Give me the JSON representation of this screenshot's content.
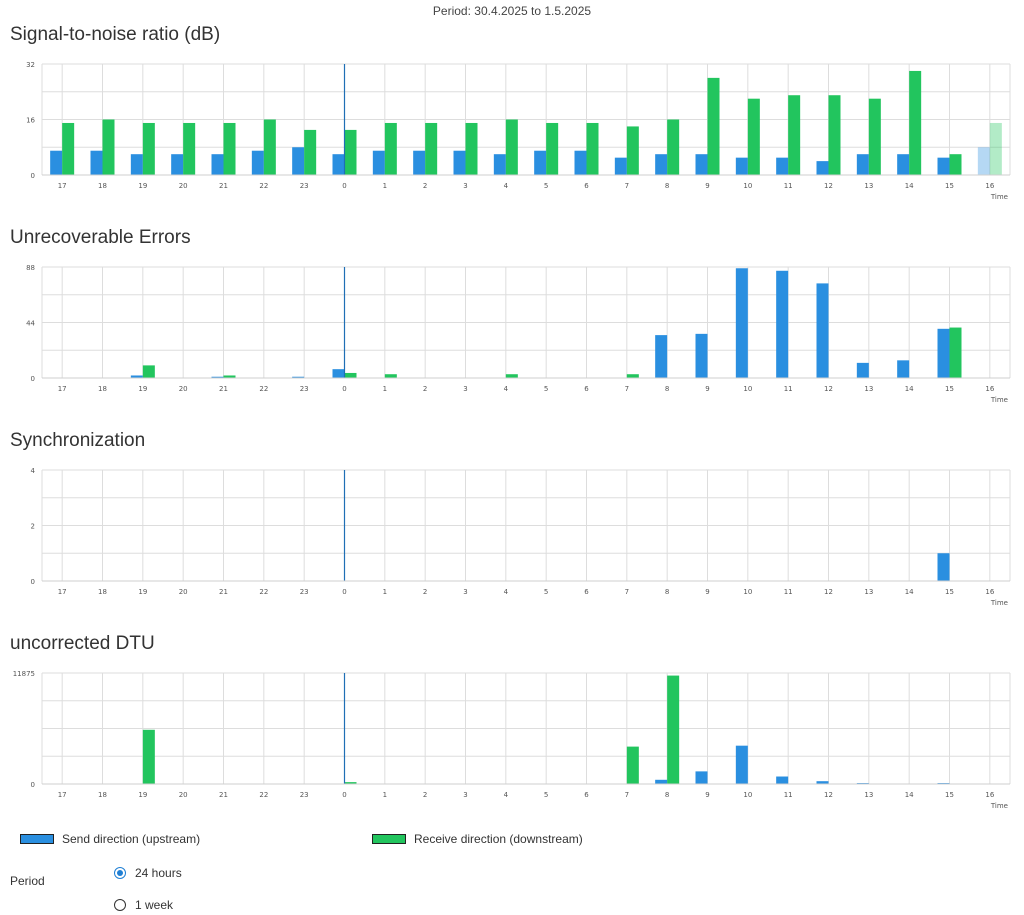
{
  "header": {
    "period_text": "Period: 30.4.2025 to 1.5.2025"
  },
  "colors": {
    "upstream": "#2a8fe0",
    "downstream": "#22c55e",
    "grid": "#dddddd",
    "marker": "#1f6fb5"
  },
  "legend": {
    "upstream": "Send direction (upstream)",
    "downstream": "Receive direction (downstream)"
  },
  "period_selector": {
    "label": "Period",
    "options": [
      {
        "label": "24 hours",
        "selected": true
      },
      {
        "label": "1 week",
        "selected": false
      }
    ]
  },
  "chart_data": [
    {
      "type": "bar",
      "title": "Signal-to-noise ratio (dB)",
      "xlabel": "Time",
      "categories": [
        "17",
        "18",
        "19",
        "20",
        "21",
        "22",
        "23",
        "0",
        "1",
        "2",
        "3",
        "4",
        "5",
        "6",
        "7",
        "8",
        "9",
        "10",
        "11",
        "12",
        "13",
        "14",
        "15",
        "16"
      ],
      "ylim": [
        0,
        32
      ],
      "yticks": [
        0,
        16,
        32
      ],
      "current_hour_marker": "0",
      "partial_last": true,
      "series": [
        {
          "key": "upstream",
          "values": [
            7,
            7,
            6,
            6,
            6,
            7,
            8,
            6,
            7,
            7,
            7,
            6,
            7,
            7,
            5,
            6,
            6,
            5,
            5,
            4,
            6,
            6,
            5,
            8
          ]
        },
        {
          "key": "downstream",
          "values": [
            15,
            16,
            15,
            15,
            15,
            16,
            13,
            13,
            15,
            15,
            15,
            16,
            15,
            15,
            14,
            16,
            28,
            22,
            23,
            23,
            22,
            30,
            6,
            15
          ]
        }
      ]
    },
    {
      "type": "bar",
      "title": "Unrecoverable Errors",
      "xlabel": "Time",
      "categories": [
        "17",
        "18",
        "19",
        "20",
        "21",
        "22",
        "23",
        "0",
        "1",
        "2",
        "3",
        "4",
        "5",
        "6",
        "7",
        "8",
        "9",
        "10",
        "11",
        "12",
        "13",
        "14",
        "15",
        "16"
      ],
      "ylim": [
        0,
        88
      ],
      "yticks": [
        0,
        44,
        88
      ],
      "current_hour_marker": "0",
      "partial_last": false,
      "series": [
        {
          "key": "upstream",
          "values": [
            0,
            0,
            2,
            0,
            1,
            0,
            1,
            7,
            0,
            0,
            0,
            0,
            0,
            0,
            0,
            34,
            35,
            87,
            85,
            75,
            12,
            14,
            39,
            0
          ]
        },
        {
          "key": "downstream",
          "values": [
            0,
            0,
            10,
            0,
            2,
            0,
            0,
            4,
            3,
            0,
            0,
            3,
            0,
            0,
            3,
            0,
            0,
            0,
            0,
            0,
            0,
            0,
            40,
            0
          ]
        }
      ]
    },
    {
      "type": "bar",
      "title": "Synchronization",
      "xlabel": "Time",
      "categories": [
        "17",
        "18",
        "19",
        "20",
        "21",
        "22",
        "23",
        "0",
        "1",
        "2",
        "3",
        "4",
        "5",
        "6",
        "7",
        "8",
        "9",
        "10",
        "11",
        "12",
        "13",
        "14",
        "15",
        "16"
      ],
      "ylim": [
        0,
        4
      ],
      "yticks": [
        0,
        2,
        4
      ],
      "current_hour_marker": "0",
      "partial_last": false,
      "series": [
        {
          "key": "upstream",
          "values": [
            0,
            0,
            0,
            0,
            0,
            0,
            0,
            0,
            0,
            0,
            0,
            0,
            0,
            0,
            0,
            0,
            0,
            0,
            0,
            0,
            0,
            0,
            1,
            0
          ]
        },
        {
          "key": "downstream",
          "values": [
            0,
            0,
            0,
            0,
            0,
            0,
            0,
            0,
            0,
            0,
            0,
            0,
            0,
            0,
            0,
            0,
            0,
            0,
            0,
            0,
            0,
            0,
            0,
            0
          ]
        }
      ]
    },
    {
      "type": "bar",
      "title": "uncorrected DTU",
      "xlabel": "Time",
      "categories": [
        "17",
        "18",
        "19",
        "20",
        "21",
        "22",
        "23",
        "0",
        "1",
        "2",
        "3",
        "4",
        "5",
        "6",
        "7",
        "8",
        "9",
        "10",
        "11",
        "12",
        "13",
        "14",
        "15",
        "16"
      ],
      "ylim": [
        0,
        11875
      ],
      "yticks": [
        0,
        11875
      ],
      "current_hour_marker": "0",
      "partial_last": false,
      "series": [
        {
          "key": "upstream",
          "values": [
            0,
            0,
            0,
            0,
            0,
            0,
            0,
            0,
            0,
            0,
            0,
            0,
            0,
            0,
            0,
            450,
            1350,
            4100,
            800,
            300,
            100,
            50,
            100,
            0
          ]
        },
        {
          "key": "downstream",
          "values": [
            0,
            0,
            5800,
            0,
            0,
            0,
            0,
            200,
            0,
            0,
            0,
            0,
            0,
            0,
            4000,
            11600,
            0,
            0,
            0,
            0,
            0,
            0,
            0,
            0
          ]
        }
      ]
    }
  ]
}
